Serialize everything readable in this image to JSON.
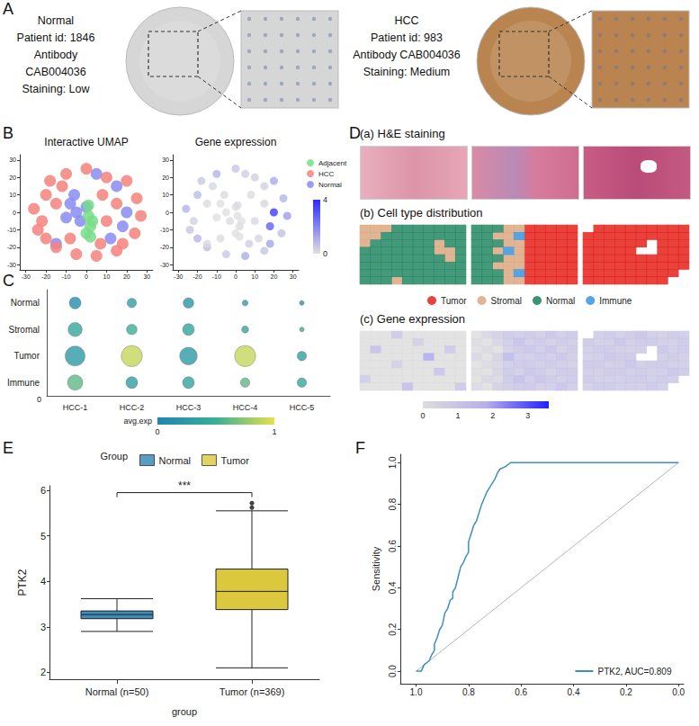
{
  "panel_labels": [
    "A",
    "B",
    "C",
    "D",
    "E",
    "F"
  ],
  "ihc": [
    {
      "lines": [
        "Normal",
        "Patient id: 1846",
        "Antibody",
        "CAB004036",
        "Staining: Low"
      ],
      "color": "#d6d6d6"
    },
    {
      "lines": [
        "HCC",
        "Patient id: 983",
        "Antibody CAB004036",
        "Staining: Medium"
      ],
      "color": "#b9844f"
    }
  ],
  "he_title": "(a) H&E staining",
  "chart_data": [
    {
      "type": "scatter",
      "title": "Interactive UMAP",
      "xlim": [
        -33,
        33
      ],
      "ylim": [
        -33,
        33
      ],
      "xticks": [
        -30,
        -20,
        -10,
        0,
        10,
        20,
        30
      ],
      "yticks": [
        -30,
        -20,
        -10,
        0,
        10,
        20,
        30
      ],
      "legend": "right",
      "series": [
        {
          "name": "Adjacent",
          "color": "#77dd88",
          "x": [
            1,
            2,
            0,
            3,
            1,
            2
          ],
          "y": [
            -2,
            -8,
            -12,
            -5,
            4,
            -14
          ]
        },
        {
          "name": "HCC",
          "color": "#f4827b",
          "x": [
            -20,
            -18,
            -10,
            0,
            10,
            20,
            25,
            27,
            24,
            15,
            5,
            -5,
            -15,
            -24,
            -26,
            -22,
            -12,
            8,
            10,
            7,
            -15,
            15,
            -8,
            18,
            -20
          ],
          "y": [
            10,
            18,
            22,
            25,
            20,
            18,
            8,
            -2,
            -12,
            -22,
            -25,
            -24,
            -20,
            -10,
            2,
            -5,
            15,
            10,
            -5,
            -18,
            5,
            5,
            -15,
            -18,
            -15
          ]
        },
        {
          "name": "Normal",
          "color": "#8a8cf2",
          "x": [
            -5,
            -8,
            -3,
            -10,
            0,
            -6,
            15,
            12,
            20,
            -15,
            5,
            18
          ],
          "y": [
            0,
            5,
            -5,
            -3,
            3,
            10,
            15,
            -15,
            0,
            -18,
            22,
            -8
          ]
        }
      ]
    },
    {
      "type": "scatter",
      "title": "Gene expression",
      "xlim": [
        -33,
        33
      ],
      "ylim": [
        -33,
        33
      ],
      "xticks": [
        -30,
        -20,
        -10,
        0,
        10,
        20,
        30
      ],
      "yticks": [
        -30,
        -20,
        -10,
        0,
        10,
        20,
        30
      ],
      "x": [
        -20,
        -18,
        -10,
        0,
        10,
        20,
        25,
        27,
        24,
        15,
        5,
        -5,
        -15,
        -24,
        -26,
        -22,
        -12,
        8,
        10,
        7,
        -15,
        15,
        -8,
        18,
        -20,
        -5,
        -8,
        -3,
        -10,
        0,
        -6,
        15,
        12,
        20,
        -15,
        5,
        18,
        1,
        2,
        0,
        3,
        1,
        2
      ],
      "y": [
        10,
        18,
        22,
        25,
        20,
        18,
        8,
        -2,
        -12,
        -22,
        -25,
        -24,
        -20,
        -10,
        2,
        -5,
        15,
        10,
        -5,
        -18,
        5,
        5,
        -15,
        -18,
        -15,
        0,
        5,
        -5,
        -3,
        3,
        10,
        15,
        -15,
        0,
        -18,
        22,
        -8,
        -2,
        -8,
        -12,
        -5,
        4,
        -14
      ],
      "values": [
        0.8,
        0.5,
        1.0,
        0.6,
        0.4,
        1.2,
        0.9,
        1.5,
        0.7,
        0.6,
        1.1,
        0.5,
        0.8,
        0.6,
        1.0,
        0.3,
        0.2,
        0.1,
        0.2,
        0.4,
        0.1,
        0.2,
        0.1,
        1.3,
        0.9,
        0.0,
        0.0,
        0.1,
        0.0,
        0.0,
        0.1,
        0.3,
        0.2,
        3.6,
        0.1,
        0.4,
        2.8,
        0.0,
        0.1,
        0.0,
        0.0,
        0.1,
        0.0
      ],
      "colorbar": {
        "range": [
          0,
          4
        ],
        "ticks": [
          0,
          4
        ],
        "colors": [
          "#e0e0e0",
          "#2b2bff"
        ]
      }
    },
    {
      "type": "dot",
      "categories": [
        "HCC-1",
        "HCC-2",
        "HCC-3",
        "HCC-4",
        "HCC-5"
      ],
      "rows": [
        "Normal",
        "Stromal",
        "Tumor",
        "Immune"
      ],
      "values": [
        [
          0.1,
          0.3,
          0.2,
          0.3,
          0.2
        ],
        [
          0.4,
          0.5,
          0.35,
          0.4,
          0.5
        ],
        [
          0.25,
          0.9,
          0.25,
          0.9,
          0.3
        ],
        [
          0.6,
          0.3,
          0.35,
          0.6,
          0.4
        ]
      ],
      "sizes": [
        [
          5,
          4,
          4.5,
          2.5,
          2
        ],
        [
          6,
          4.5,
          5,
          3,
          2
        ],
        [
          8.5,
          9,
          7.5,
          9,
          4
        ],
        [
          6.5,
          5,
          5,
          4,
          4
        ]
      ],
      "colorbar": {
        "title": "avg.exp",
        "range": [
          0,
          1
        ],
        "ticks": [
          0,
          1
        ],
        "colors": [
          "#1f85b3",
          "#3aae95",
          "#e7e14b"
        ]
      },
      "annotations": [
        "0"
      ]
    },
    {
      "type": "spatial",
      "title": "(b) Cell type distribution",
      "cell_types": [
        "Tumor",
        "Stromal",
        "Normal",
        "Immune"
      ],
      "colors": [
        "#e3120b",
        "#d9a379",
        "#17805a",
        "#2a8fe0"
      ],
      "legend": "bottom",
      "slides": [
        [
          [
            1,
            1,
            1,
            2,
            2,
            2,
            2,
            2,
            2,
            2
          ],
          [
            1,
            1,
            2,
            2,
            2,
            2,
            2,
            2,
            2,
            2
          ],
          [
            1,
            2,
            2,
            2,
            2,
            2,
            2,
            1,
            2,
            2
          ],
          [
            2,
            2,
            2,
            2,
            2,
            2,
            2,
            1,
            1,
            2
          ],
          [
            2,
            2,
            2,
            2,
            2,
            2,
            2,
            2,
            1,
            2
          ],
          [
            2,
            2,
            2,
            2,
            2,
            2,
            2,
            2,
            2,
            2
          ],
          [
            2,
            2,
            2,
            2,
            2,
            2,
            2,
            2,
            2,
            2
          ],
          [
            2,
            2,
            2,
            1,
            2,
            2,
            2,
            2,
            2,
            2
          ]
        ],
        [
          [
            2,
            2,
            2,
            1,
            1,
            0,
            0,
            0,
            0,
            0
          ],
          [
            2,
            2,
            1,
            1,
            3,
            0,
            0,
            0,
            0,
            0
          ],
          [
            2,
            2,
            2,
            1,
            1,
            0,
            0,
            0,
            0,
            0
          ],
          [
            2,
            2,
            1,
            3,
            1,
            0,
            0,
            0,
            0,
            0
          ],
          [
            2,
            2,
            2,
            1,
            1,
            0,
            0,
            0,
            0,
            0
          ],
          [
            2,
            2,
            1,
            1,
            1,
            0,
            0,
            0,
            0,
            0
          ],
          [
            2,
            2,
            2,
            1,
            3,
            0,
            0,
            0,
            0,
            0
          ],
          [
            2,
            2,
            2,
            1,
            1,
            0,
            0,
            0,
            0,
            0
          ]
        ],
        [
          [
            null,
            0,
            0,
            0,
            0,
            0,
            0,
            0,
            0,
            0
          ],
          [
            0,
            0,
            0,
            0,
            0,
            0,
            0,
            0,
            0,
            0
          ],
          [
            0,
            0,
            0,
            0,
            0,
            0,
            null,
            0,
            0,
            0
          ],
          [
            0,
            0,
            0,
            0,
            0,
            null,
            null,
            0,
            0,
            0
          ],
          [
            0,
            0,
            0,
            0,
            0,
            0,
            0,
            0,
            0,
            0
          ],
          [
            0,
            0,
            0,
            0,
            0,
            0,
            0,
            0,
            0,
            0
          ],
          [
            0,
            0,
            0,
            0,
            0,
            0,
            0,
            0,
            0,
            null
          ],
          [
            0,
            0,
            0,
            0,
            0,
            0,
            0,
            0,
            null,
            null
          ]
        ]
      ]
    },
    {
      "type": "spatial",
      "title": "(c) Gene expression",
      "slides": [
        [
          [
            0,
            0,
            0,
            1.2,
            0,
            0,
            0,
            0,
            0,
            0
          ],
          [
            0,
            0,
            0,
            0,
            0,
            0.9,
            0,
            0,
            0,
            0
          ],
          [
            0,
            1.5,
            0,
            0,
            0,
            0,
            0,
            0,
            1.1,
            0
          ],
          [
            0,
            0,
            0,
            0,
            0,
            0,
            2.0,
            0,
            0,
            0
          ],
          [
            0,
            0,
            0,
            0.8,
            0,
            0,
            0,
            0,
            0,
            0
          ],
          [
            0,
            0,
            0,
            0,
            0,
            0,
            0,
            1.3,
            0,
            0
          ],
          [
            1.0,
            0,
            0,
            0,
            0,
            0,
            0,
            0,
            0,
            0
          ],
          [
            0,
            0,
            0,
            0,
            1.6,
            0,
            0,
            0,
            0,
            1.2
          ]
        ],
        [
          [
            0,
            0.5,
            0.8,
            1.2,
            1.0,
            1.1,
            0.9,
            1.3,
            1.0,
            1.2
          ],
          [
            0.3,
            0,
            0.6,
            1.0,
            1.5,
            1.0,
            1.2,
            0.9,
            1.1,
            1.0
          ],
          [
            0,
            0.4,
            0,
            0.9,
            1.1,
            1.3,
            1.0,
            1.4,
            0.8,
            1.1
          ],
          [
            0.5,
            0,
            0.7,
            1.8,
            1.0,
            0.9,
            1.2,
            1.0,
            1.3,
            1.0
          ],
          [
            0,
            0.3,
            0.5,
            1.0,
            1.2,
            1.1,
            1.0,
            1.2,
            1.0,
            0.9
          ],
          [
            0.2,
            0,
            0.6,
            1.1,
            0.9,
            1.3,
            1.1,
            0.8,
            1.2,
            1.1
          ],
          [
            0,
            0.5,
            0.4,
            1.2,
            1.6,
            1.0,
            1.4,
            1.1,
            1.0,
            1.2
          ],
          [
            0.3,
            0,
            0.8,
            1.0,
            1.1,
            1.2,
            0.9,
            1.0,
            1.3,
            1.0
          ]
        ],
        [
          [
            null,
            1.0,
            1.2,
            0.9,
            1.1,
            1.3,
            1.0,
            0.9,
            1.2,
            1.0
          ],
          [
            1.1,
            0.9,
            1.0,
            1.4,
            1.0,
            1.1,
            1.2,
            1.0,
            0.9,
            1.1
          ],
          [
            1.0,
            1.2,
            1.1,
            1.0,
            0.9,
            1.0,
            null,
            1.3,
            1.0,
            1.2
          ],
          [
            0.9,
            1.0,
            1.3,
            1.1,
            1.2,
            null,
            null,
            1.0,
            1.1,
            0.9
          ],
          [
            1.2,
            1.1,
            0.9,
            1.0,
            1.4,
            1.0,
            1.1,
            1.2,
            1.0,
            1.0
          ],
          [
            1.0,
            0.9,
            1.1,
            1.2,
            1.0,
            1.1,
            0.9,
            1.0,
            1.3,
            1.1
          ],
          [
            1.1,
            1.0,
            1.0,
            0.9,
            1.1,
            1.2,
            1.0,
            1.1,
            1.0,
            null
          ],
          [
            0.9,
            1.2,
            1.1,
            1.0,
            1.0,
            0.9,
            1.2,
            1.0,
            null,
            null
          ]
        ]
      ],
      "colorbar": {
        "range": [
          0,
          3.6
        ],
        "ticks": [
          0,
          1,
          2,
          3
        ],
        "colors": [
          "#dcdcdc",
          "#b8b0e8",
          "#2020ff"
        ]
      }
    },
    {
      "type": "boxplot",
      "categories": [
        "Normal (n=50)",
        "Tumor (n=369)"
      ],
      "legend_title": "Group",
      "legend": "top",
      "xlabel": "group",
      "ylabel": "PTK2",
      "ylim": [
        1.85,
        6.1
      ],
      "yticks": [
        2,
        3,
        4,
        5,
        6
      ],
      "series": [
        {
          "name": "Normal",
          "color": "#3d8cb8",
          "box": [
            2.9,
            3.18,
            3.27,
            3.35,
            3.62
          ],
          "outliers": []
        },
        {
          "name": "Tumor",
          "color": "#dcc83c",
          "box": [
            2.1,
            3.38,
            3.78,
            4.27,
            5.55
          ],
          "outliers": [
            5.62,
            5.72
          ]
        }
      ],
      "significance": {
        "label": "***",
        "y": 5.95
      }
    },
    {
      "type": "line",
      "ylabel": "Sensitivity",
      "xlim": [
        1.06,
        -0.02
      ],
      "ylim": [
        -0.06,
        1.04
      ],
      "xticks": [
        {
          "value": 1,
          "label": "1.0"
        },
        0.8,
        0.6,
        0.4,
        0.2,
        {
          "value": 0,
          "label": "0.0"
        }
      ],
      "yticks": [
        {
          "value": 0,
          "label": "0.0"
        },
        0.2,
        0.4,
        0.6,
        0.8,
        {
          "value": 1,
          "label": "1.0"
        }
      ],
      "legend": "bottom-right",
      "series": [
        {
          "name": "PTK2, AUC=0.809",
          "color": "#3b8fc4",
          "x": [
            1.0,
            0.98,
            0.97,
            0.95,
            0.94,
            0.93,
            0.93,
            0.92,
            0.91,
            0.9,
            0.89,
            0.88,
            0.87,
            0.86,
            0.86,
            0.85,
            0.84,
            0.83,
            0.82,
            0.81,
            0.8,
            0.8,
            0.79,
            0.78,
            0.77,
            0.76,
            0.75,
            0.74,
            0.73,
            0.72,
            0.71,
            0.7,
            0.69,
            0.68,
            0.66,
            0.64,
            0.0
          ],
          "y": [
            0.0,
            0.0,
            0.03,
            0.05,
            0.08,
            0.1,
            0.13,
            0.16,
            0.2,
            0.22,
            0.28,
            0.3,
            0.34,
            0.35,
            0.38,
            0.4,
            0.45,
            0.5,
            0.52,
            0.55,
            0.57,
            0.62,
            0.66,
            0.7,
            0.72,
            0.76,
            0.8,
            0.83,
            0.86,
            0.88,
            0.9,
            0.92,
            0.95,
            0.97,
            0.98,
            1.0,
            1.0
          ]
        }
      ],
      "reference": {
        "x": [
          1,
          0
        ],
        "y": [
          0,
          1
        ],
        "color": "#b5b5b5"
      }
    }
  ]
}
